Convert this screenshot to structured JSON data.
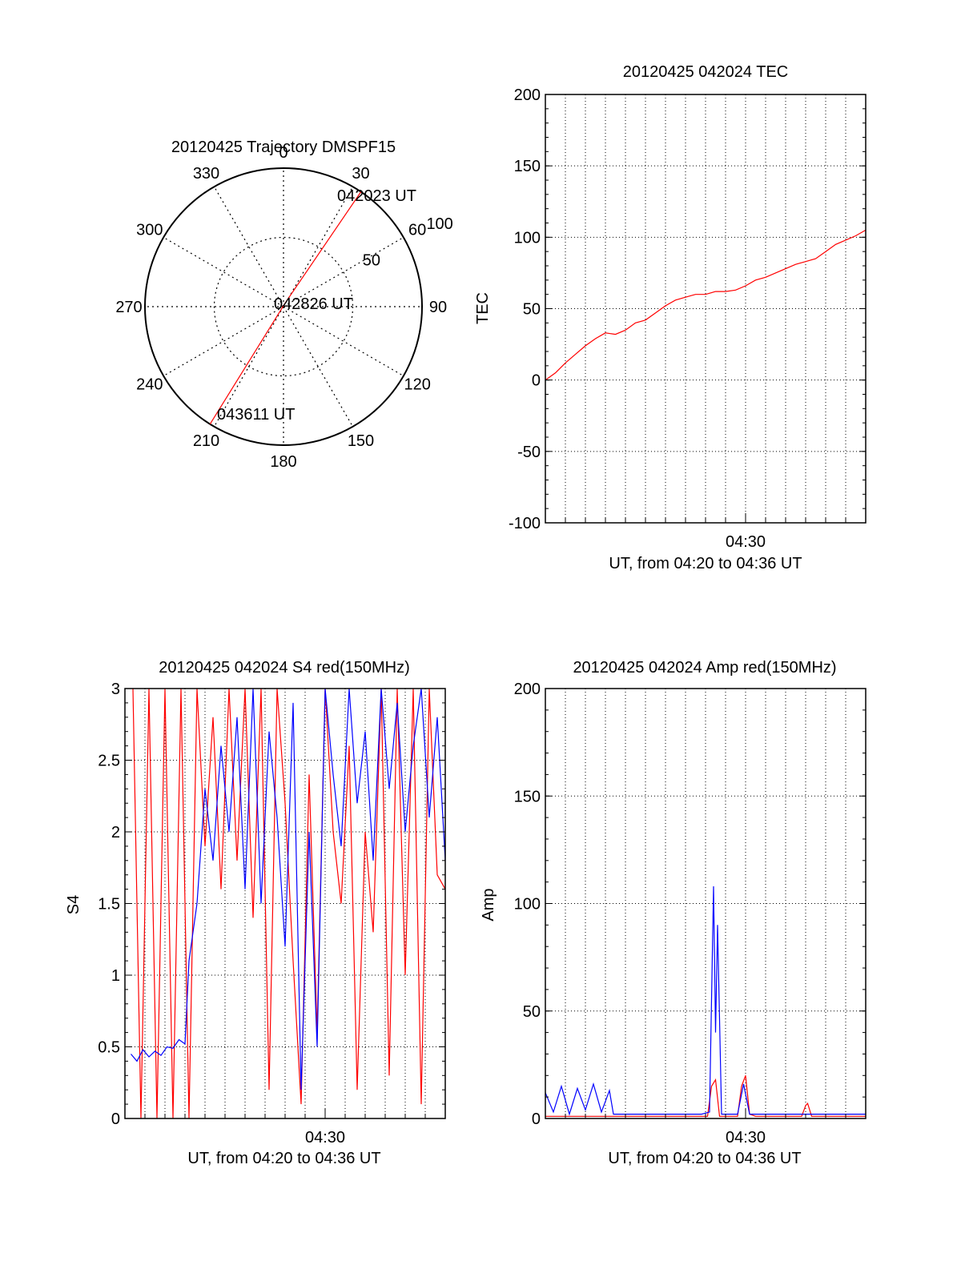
{
  "colors": {
    "red": "#ff0000",
    "blue": "#0000ff",
    "axis": "#000000",
    "grid": "#000000"
  },
  "chart_data": [
    {
      "type": "polar",
      "title": "20120425 Trajectory DMSPF15",
      "angle_labels": [
        "0",
        "30",
        "60",
        "90",
        "120",
        "150",
        "180",
        "210",
        "240",
        "270",
        "300",
        "330"
      ],
      "radial_ticks": [
        50,
        100
      ],
      "radial_max": 100,
      "grid": true,
      "series": [
        {
          "color": "#ff0000",
          "points": [
            [
              34,
              100
            ],
            [
              25,
              3
            ],
            [
              212,
              100
            ]
          ]
        }
      ],
      "annotations": [
        "042023 UT",
        "042826 UT",
        "043611 UT"
      ]
    },
    {
      "type": "line",
      "title": "20120425 042024 TEC",
      "xlabel": "UT, from 04:20 to 04:36 UT",
      "ylabel": "TEC",
      "xlim": [
        0,
        16
      ],
      "ylim": [
        -100,
        200
      ],
      "yticks": [
        -100,
        -50,
        0,
        50,
        100,
        150,
        200
      ],
      "xticks": [
        {
          "value": 10,
          "label": "04:30"
        }
      ],
      "grid": true,
      "series": [
        {
          "color": "#ff0000",
          "x": [
            0.0,
            0.5,
            1.0,
            1.5,
            2.0,
            2.5,
            3.0,
            3.5,
            4.0,
            4.5,
            5.0,
            5.5,
            6.0,
            6.5,
            7.0,
            7.5,
            8.0,
            8.5,
            9.0,
            9.5,
            10.0,
            10.5,
            11.0,
            11.5,
            12.0,
            12.5,
            13.0,
            13.5,
            14.0,
            14.5,
            15.0,
            15.5,
            16.0
          ],
          "y": [
            0,
            5,
            12,
            18,
            24,
            29,
            33,
            32,
            35,
            40,
            42,
            47,
            52,
            56,
            58,
            60,
            60,
            62,
            62,
            63,
            66,
            70,
            72,
            75,
            78,
            81,
            83,
            85,
            90,
            95,
            98,
            101,
            105
          ]
        }
      ]
    },
    {
      "type": "line",
      "title": "20120425 042024 S4 red(150MHz)",
      "xlabel": "UT, from 04:20 to 04:36 UT",
      "ylabel": "S4",
      "xlim": [
        0,
        16
      ],
      "ylim": [
        0,
        3
      ],
      "yticks": [
        0,
        0.5,
        1,
        1.5,
        2,
        2.5,
        3
      ],
      "ytick_labels": [
        "0",
        "0.5",
        "1",
        "1.5",
        "2",
        "2.5",
        "3"
      ],
      "xticks": [
        {
          "value": 10,
          "label": "04:30"
        }
      ],
      "grid": true,
      "series": [
        {
          "color": "#ff0000",
          "x": [
            0.4,
            0.8,
            1.2,
            1.6,
            2.0,
            2.4,
            2.8,
            3.2,
            3.6,
            4.0,
            4.4,
            4.8,
            5.2,
            5.6,
            6.0,
            6.4,
            6.8,
            7.2,
            7.6,
            8.0,
            8.4,
            8.8,
            9.2,
            9.6,
            10.0,
            10.4,
            10.8,
            11.2,
            11.6,
            12.0,
            12.4,
            12.8,
            13.2,
            13.6,
            14.0,
            14.4,
            14.8,
            15.2,
            15.6,
            16.0
          ],
          "y": [
            3.0,
            0.0,
            3.0,
            0.0,
            3.0,
            0.0,
            3.0,
            0.0,
            3.0,
            1.9,
            2.8,
            1.6,
            3.0,
            1.8,
            3.0,
            1.4,
            3.0,
            0.2,
            3.0,
            2.2,
            1.1,
            0.1,
            2.4,
            0.6,
            3.0,
            2.0,
            1.5,
            2.6,
            0.2,
            2.0,
            1.3,
            3.0,
            0.3,
            3.0,
            1.0,
            3.0,
            0.1,
            3.0,
            1.7,
            1.6
          ]
        },
        {
          "color": "#0000ff",
          "x": [
            0.3,
            0.6,
            0.9,
            1.2,
            1.5,
            1.8,
            2.1,
            2.4,
            2.7,
            3.0,
            3.2,
            3.6,
            4.0,
            4.4,
            4.8,
            5.2,
            5.6,
            6.0,
            6.4,
            6.8,
            7.2,
            7.6,
            8.0,
            8.4,
            8.8,
            9.2,
            9.6,
            10.0,
            10.4,
            10.8,
            11.2,
            11.6,
            12.0,
            12.4,
            12.8,
            13.2,
            13.6,
            14.0,
            14.4,
            14.8,
            15.2,
            15.6,
            16.0
          ],
          "y": [
            0.45,
            0.4,
            0.48,
            0.43,
            0.47,
            0.44,
            0.5,
            0.49,
            0.55,
            0.52,
            1.1,
            1.5,
            2.3,
            1.8,
            2.6,
            2.0,
            2.8,
            1.6,
            3.0,
            1.5,
            2.7,
            2.1,
            1.2,
            2.9,
            0.2,
            2.0,
            0.5,
            3.0,
            2.4,
            1.9,
            3.0,
            2.2,
            2.7,
            1.8,
            3.0,
            2.3,
            2.9,
            2.0,
            2.6,
            3.0,
            2.1,
            2.8,
            1.8
          ]
        }
      ]
    },
    {
      "type": "line",
      "title": "20120425 042024 Amp red(150MHz)",
      "xlabel": "UT, from 04:20 to 04:36 UT",
      "ylabel": "Amp",
      "xlim": [
        0,
        16
      ],
      "ylim": [
        0,
        200
      ],
      "yticks": [
        0,
        50,
        100,
        150,
        200
      ],
      "xticks": [
        {
          "value": 10,
          "label": "04:30"
        }
      ],
      "grid": true,
      "series": [
        {
          "color": "#ff0000",
          "x": [
            0.0,
            7.8,
            8.1,
            8.3,
            8.5,
            8.7,
            9.6,
            9.8,
            10.0,
            10.2,
            10.5,
            12.8,
            13.0,
            13.1,
            13.3,
            16.0
          ],
          "y": [
            1,
            1,
            1,
            15,
            18,
            1,
            1,
            15,
            20,
            2,
            1,
            1,
            6,
            7,
            1,
            1
          ]
        },
        {
          "color": "#0000ff",
          "x": [
            0.0,
            0.4,
            0.8,
            1.2,
            1.6,
            2.0,
            2.4,
            2.8,
            3.2,
            3.4,
            4.0,
            5.0,
            6.0,
            7.0,
            7.8,
            8.2,
            8.4,
            8.5,
            8.6,
            8.8,
            9.2,
            9.6,
            9.9,
            10.2,
            11.0,
            12.0,
            13.0,
            14.0,
            15.0,
            16.0
          ],
          "y": [
            12,
            3,
            15,
            2,
            14,
            4,
            16,
            3,
            13,
            2,
            2,
            2,
            2,
            2,
            2,
            3,
            108,
            40,
            90,
            2,
            2,
            2,
            16,
            2,
            2,
            2,
            2,
            2,
            2,
            2
          ]
        }
      ]
    }
  ]
}
